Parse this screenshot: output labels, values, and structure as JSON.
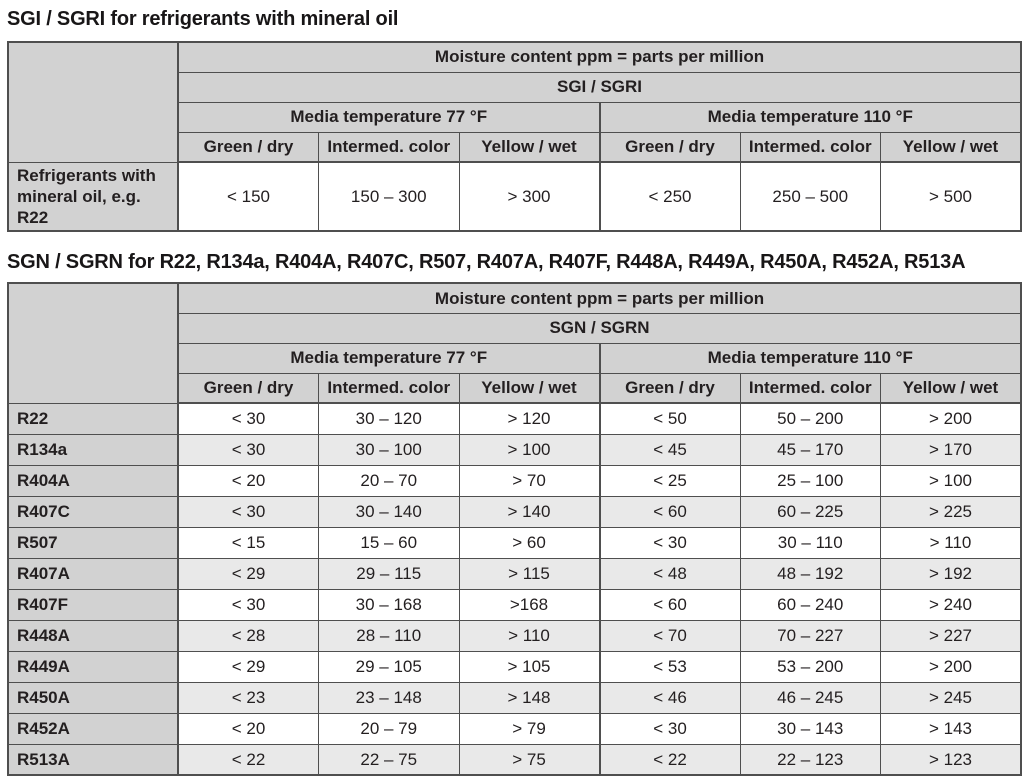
{
  "colors": {
    "header_bg": "#d2d2d2",
    "alt_row_bg": "#e9e9e9",
    "border": "#4f4f4f",
    "text": "#231f20"
  },
  "section1": {
    "title": "SGI / SGRI for refrigerants with mineral oil"
  },
  "section2": {
    "title": "SGN / SGRN for R22, R134a, R404A, R407C, R507, R407A, R407F, R448A, R449A, R450A, R452A, R513A"
  },
  "table1": {
    "header": {
      "moisture": "Moisture content ppm = parts per million",
      "model": "SGI / SGRI",
      "temp_groups": [
        "Media temperature 77 °F",
        "Media temperature 110 °F"
      ],
      "columns": [
        "Green / dry",
        "Intermed. color",
        "Yellow / wet",
        "Green / dry",
        "Intermed. color",
        "Yellow / wet"
      ]
    },
    "rows": [
      {
        "label": "Refrigerants with mineral oil, e.g. R22",
        "values": [
          "< 150",
          "150 – 300",
          "> 300",
          "< 250",
          "250 – 500",
          "> 500"
        ]
      }
    ]
  },
  "table2": {
    "header": {
      "moisture": "Moisture content ppm = parts per million",
      "model": "SGN / SGRN",
      "temp_groups": [
        "Media temperature 77 °F",
        "Media temperature 110 °F"
      ],
      "columns": [
        "Green / dry",
        "Intermed. color",
        "Yellow / wet",
        "Green / dry",
        "Intermed. color",
        "Yellow / wet"
      ]
    },
    "rows": [
      {
        "label": "R22",
        "values": [
          "< 30",
          "30 – 120",
          "> 120",
          "< 50",
          "50 – 200",
          "> 200"
        ]
      },
      {
        "label": "R134a",
        "values": [
          "< 30",
          "30 – 100",
          "> 100",
          "< 45",
          "45 – 170",
          "> 170"
        ]
      },
      {
        "label": "R404A",
        "values": [
          "< 20",
          "20 – 70",
          "> 70",
          "< 25",
          "25 – 100",
          "> 100"
        ]
      },
      {
        "label": "R407C",
        "values": [
          "< 30",
          "30 – 140",
          "> 140",
          "< 60",
          "60 – 225",
          "> 225"
        ]
      },
      {
        "label": "R507",
        "values": [
          "< 15",
          "15 – 60",
          ">  60",
          "< 30",
          "30 – 110",
          "> 110"
        ]
      },
      {
        "label": "R407A",
        "values": [
          "< 29",
          "29 – 115",
          "> 115",
          "< 48",
          "48 – 192",
          "> 192"
        ]
      },
      {
        "label": "R407F",
        "values": [
          "< 30",
          "30 – 168",
          ">168",
          "< 60",
          "60 – 240",
          "> 240"
        ]
      },
      {
        "label": "R448A",
        "values": [
          "< 28",
          "28 – 110",
          "> 110",
          "< 70",
          "70 – 227",
          "> 227"
        ]
      },
      {
        "label": "R449A",
        "values": [
          "< 29",
          "29 – 105",
          "> 105",
          "< 53",
          "53 – 200",
          "> 200"
        ]
      },
      {
        "label": "R450A",
        "values": [
          "< 23",
          "23 – 148",
          "> 148",
          "< 46",
          "46 – 245",
          "> 245"
        ]
      },
      {
        "label": "R452A",
        "values": [
          "< 20",
          "20 – 79",
          "> 79",
          "< 30",
          "30 – 143",
          "> 143"
        ]
      },
      {
        "label": "R513A",
        "values": [
          "< 22",
          "22 – 75",
          "> 75",
          "< 22",
          "22 – 123",
          "> 123"
        ]
      }
    ]
  }
}
